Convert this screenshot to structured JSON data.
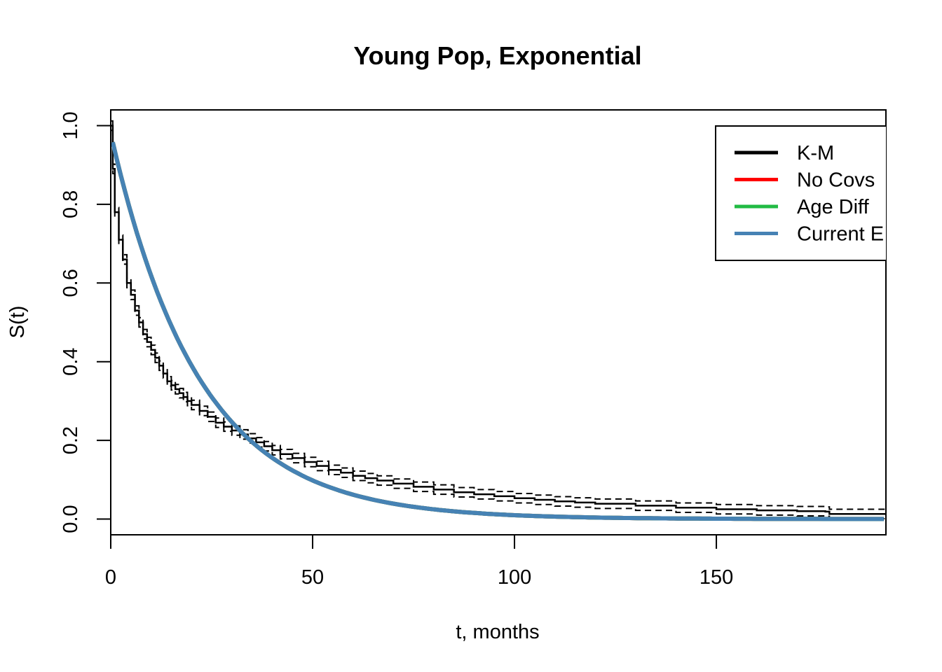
{
  "chart_data": {
    "type": "line",
    "title": "Young Pop, Exponential",
    "xlabel": "t, months",
    "ylabel": "S(t)",
    "xlim": [
      0,
      192
    ],
    "ylim": [
      -0.04,
      1.04
    ],
    "x_ticks": [
      0,
      50,
      100,
      150
    ],
    "y_ticks": [
      0.0,
      0.2,
      0.4,
      0.6,
      0.8,
      1.0
    ],
    "x_tick_labels": [
      "0",
      "50",
      "100",
      "150"
    ],
    "y_tick_labels": [
      "0.0",
      "0.2",
      "0.4",
      "0.6",
      "0.8",
      "1.0"
    ],
    "grid": false,
    "legend_position": "top-right",
    "legend": [
      {
        "name": "K-M",
        "color": "#000000"
      },
      {
        "name": "No Covs",
        "color": "#ff0000"
      },
      {
        "name": "Age Diff",
        "color": "#22bb44"
      },
      {
        "name": "Current E",
        "color": "#4682b4"
      }
    ],
    "km_estimate": {
      "name": "K-M",
      "color": "#000000",
      "x": [
        0,
        0.5,
        1,
        2,
        3,
        4,
        5,
        6,
        7,
        8,
        9,
        10,
        11,
        12,
        13,
        14,
        15,
        16,
        17,
        18,
        19,
        20,
        22,
        24,
        26,
        28,
        30,
        32,
        34,
        36,
        38,
        40,
        42,
        45,
        48,
        51,
        54,
        57,
        60,
        63,
        66,
        70,
        75,
        80,
        85,
        90,
        95,
        100,
        105,
        110,
        115,
        120,
        130,
        140,
        150,
        160,
        170,
        177,
        178,
        192
      ],
      "y": [
        1.0,
        0.89,
        0.78,
        0.71,
        0.66,
        0.6,
        0.57,
        0.53,
        0.5,
        0.47,
        0.45,
        0.43,
        0.41,
        0.39,
        0.37,
        0.35,
        0.34,
        0.33,
        0.32,
        0.31,
        0.3,
        0.29,
        0.275,
        0.26,
        0.245,
        0.235,
        0.225,
        0.215,
        0.205,
        0.195,
        0.185,
        0.175,
        0.165,
        0.155,
        0.145,
        0.135,
        0.125,
        0.118,
        0.11,
        0.104,
        0.098,
        0.09,
        0.082,
        0.075,
        0.068,
        0.063,
        0.058,
        0.053,
        0.049,
        0.045,
        0.042,
        0.039,
        0.034,
        0.029,
        0.025,
        0.022,
        0.02,
        0.019,
        0.013,
        0.013
      ],
      "ci_offset": 0.012
    },
    "series": [
      {
        "name": "No Covs",
        "color": "#ff0000",
        "model": "exponential",
        "s0": 0.98,
        "rate": 0.046
      },
      {
        "name": "Age Diff",
        "color": "#22bb44",
        "model": "exponential",
        "s0": 0.98,
        "rate": 0.046
      },
      {
        "name": "Current E",
        "color": "#4682b4",
        "model": "exponential",
        "s0": 0.98,
        "rate": 0.046
      }
    ]
  }
}
